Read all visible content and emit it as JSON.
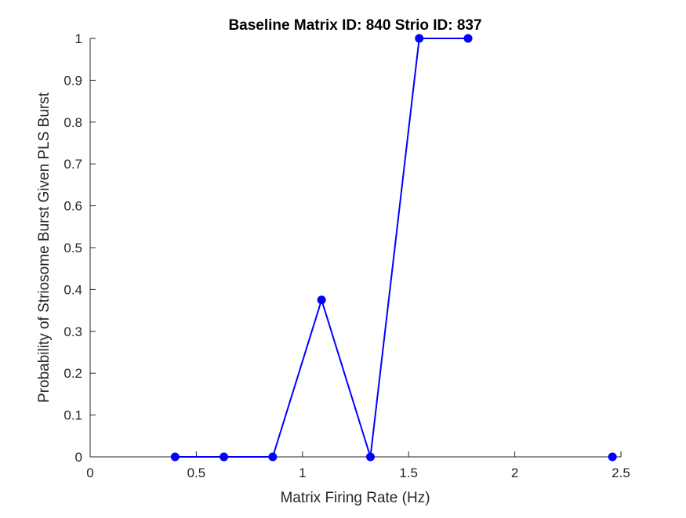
{
  "chart_data": {
    "type": "line",
    "title": "Baseline Matrix ID: 840 Strio ID: 837",
    "xlabel": "Matrix Firing Rate (Hz)",
    "ylabel": "Probability of Striosome Burst Given PLS Burst",
    "xlim": [
      0,
      2.5
    ],
    "ylim": [
      0,
      1
    ],
    "x_ticks": [
      "0",
      "0.5",
      "1",
      "1.5",
      "2",
      "2.5"
    ],
    "y_ticks": [
      "0",
      "0.1",
      "0.2",
      "0.3",
      "0.4",
      "0.5",
      "0.6",
      "0.7",
      "0.8",
      "0.9",
      "1"
    ],
    "grid": false,
    "series": [
      {
        "color": "#0000ff",
        "marker": "circle",
        "segments": [
          {
            "x": [
              0.4,
              0.63,
              0.86,
              1.09,
              1.32,
              1.55,
              1.78
            ],
            "y": [
              0,
              0,
              0,
              0.375,
              0,
              1,
              1
            ]
          },
          {
            "x": [
              2.46
            ],
            "y": [
              0
            ]
          }
        ]
      }
    ]
  }
}
